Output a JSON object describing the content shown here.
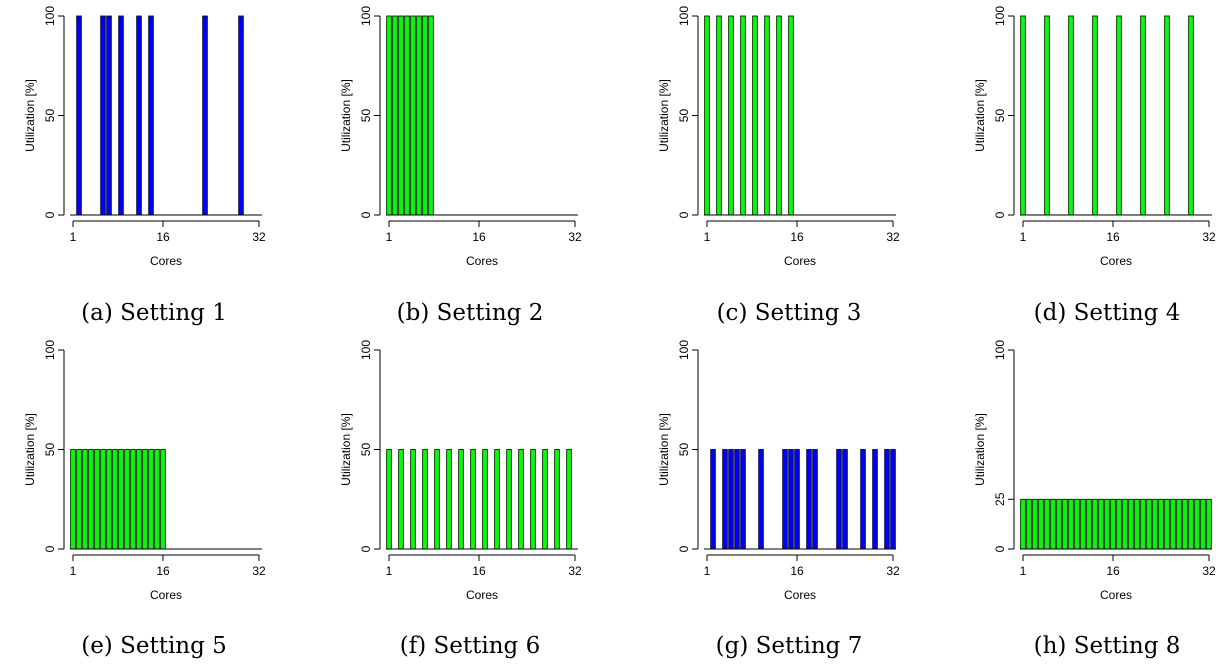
{
  "chart_data": [
    {
      "type": "bar",
      "caption": "(a) Setting 1",
      "xlabel": "Cores",
      "ylabel": "Utilization [%]",
      "ylim": [
        0,
        100
      ],
      "yticks": [
        0,
        50,
        100
      ],
      "xticks": [
        1,
        16,
        32
      ],
      "bar_color": "#0000ff",
      "cores": [
        1,
        2,
        3,
        4,
        5,
        6,
        7,
        8,
        9,
        10,
        11,
        12,
        13,
        14,
        15,
        16,
        17,
        18,
        19,
        20,
        21,
        22,
        23,
        24,
        25,
        26,
        27,
        28,
        29,
        30,
        31,
        32
      ],
      "values": [
        0,
        100,
        0,
        0,
        0,
        100,
        100,
        0,
        100,
        0,
        0,
        100,
        0,
        100,
        0,
        0,
        0,
        0,
        0,
        0,
        0,
        0,
        100,
        0,
        0,
        0,
        0,
        0,
        100,
        0,
        0,
        0
      ]
    },
    {
      "type": "bar",
      "caption": "(b) Setting 2",
      "xlabel": "Cores",
      "ylabel": "Utilization [%]",
      "ylim": [
        0,
        100
      ],
      "yticks": [
        0,
        50,
        100
      ],
      "xticks": [
        1,
        16,
        32
      ],
      "bar_color": "#00ff00",
      "cores": [
        1,
        2,
        3,
        4,
        5,
        6,
        7,
        8,
        9,
        10,
        11,
        12,
        13,
        14,
        15,
        16,
        17,
        18,
        19,
        20,
        21,
        22,
        23,
        24,
        25,
        26,
        27,
        28,
        29,
        30,
        31,
        32
      ],
      "values": [
        100,
        100,
        100,
        100,
        100,
        100,
        100,
        100,
        0,
        0,
        0,
        0,
        0,
        0,
        0,
        0,
        0,
        0,
        0,
        0,
        0,
        0,
        0,
        0,
        0,
        0,
        0,
        0,
        0,
        0,
        0,
        0
      ]
    },
    {
      "type": "bar",
      "caption": "(c) Setting 3",
      "xlabel": "Cores",
      "ylabel": "Utilization [%]",
      "ylim": [
        0,
        100
      ],
      "yticks": [
        0,
        50,
        100
      ],
      "xticks": [
        1,
        16,
        32
      ],
      "bar_color": "#00ff00",
      "cores": [
        1,
        2,
        3,
        4,
        5,
        6,
        7,
        8,
        9,
        10,
        11,
        12,
        13,
        14,
        15,
        16,
        17,
        18,
        19,
        20,
        21,
        22,
        23,
        24,
        25,
        26,
        27,
        28,
        29,
        30,
        31,
        32
      ],
      "values": [
        100,
        0,
        100,
        0,
        100,
        0,
        100,
        0,
        100,
        0,
        100,
        0,
        100,
        0,
        100,
        0,
        0,
        0,
        0,
        0,
        0,
        0,
        0,
        0,
        0,
        0,
        0,
        0,
        0,
        0,
        0,
        0
      ]
    },
    {
      "type": "bar",
      "caption": "(d) Setting 4",
      "xlabel": "Cores",
      "ylabel": "Utilization [%]",
      "ylim": [
        0,
        100
      ],
      "yticks": [
        0,
        50,
        100
      ],
      "xticks": [
        1,
        16,
        32
      ],
      "bar_color": "#00ff00",
      "cores": [
        1,
        2,
        3,
        4,
        5,
        6,
        7,
        8,
        9,
        10,
        11,
        12,
        13,
        14,
        15,
        16,
        17,
        18,
        19,
        20,
        21,
        22,
        23,
        24,
        25,
        26,
        27,
        28,
        29,
        30,
        31,
        32
      ],
      "values": [
        100,
        0,
        0,
        0,
        100,
        0,
        0,
        0,
        100,
        0,
        0,
        0,
        100,
        0,
        0,
        0,
        100,
        0,
        0,
        0,
        100,
        0,
        0,
        0,
        100,
        0,
        0,
        0,
        100,
        0,
        0,
        0
      ]
    },
    {
      "type": "bar",
      "caption": "(e) Setting 5",
      "xlabel": "Cores",
      "ylabel": "Utilization [%]",
      "ylim": [
        0,
        100
      ],
      "yticks": [
        0,
        50,
        100
      ],
      "xticks": [
        1,
        16,
        32
      ],
      "bar_color": "#00ff00",
      "cores": [
        1,
        2,
        3,
        4,
        5,
        6,
        7,
        8,
        9,
        10,
        11,
        12,
        13,
        14,
        15,
        16,
        17,
        18,
        19,
        20,
        21,
        22,
        23,
        24,
        25,
        26,
        27,
        28,
        29,
        30,
        31,
        32
      ],
      "values": [
        50,
        50,
        50,
        50,
        50,
        50,
        50,
        50,
        50,
        50,
        50,
        50,
        50,
        50,
        50,
        50,
        0,
        0,
        0,
        0,
        0,
        0,
        0,
        0,
        0,
        0,
        0,
        0,
        0,
        0,
        0,
        0
      ]
    },
    {
      "type": "bar",
      "caption": "(f) Setting 6",
      "xlabel": "Cores",
      "ylabel": "Utilization [%]",
      "ylim": [
        0,
        100
      ],
      "yticks": [
        0,
        50,
        100
      ],
      "xticks": [
        1,
        16,
        32
      ],
      "bar_color": "#00ff00",
      "cores": [
        1,
        2,
        3,
        4,
        5,
        6,
        7,
        8,
        9,
        10,
        11,
        12,
        13,
        14,
        15,
        16,
        17,
        18,
        19,
        20,
        21,
        22,
        23,
        24,
        25,
        26,
        27,
        28,
        29,
        30,
        31,
        32
      ],
      "values": [
        50,
        0,
        50,
        0,
        50,
        0,
        50,
        0,
        50,
        0,
        50,
        0,
        50,
        0,
        50,
        0,
        50,
        0,
        50,
        0,
        50,
        0,
        50,
        0,
        50,
        0,
        50,
        0,
        50,
        0,
        50,
        0
      ]
    },
    {
      "type": "bar",
      "caption": "(g) Setting 7",
      "xlabel": "Cores",
      "ylabel": "Utilization [%]",
      "ylim": [
        0,
        100
      ],
      "yticks": [
        0,
        50,
        100
      ],
      "xticks": [
        1,
        16,
        32
      ],
      "bar_color": "#0000ff",
      "cores": [
        1,
        2,
        3,
        4,
        5,
        6,
        7,
        8,
        9,
        10,
        11,
        12,
        13,
        14,
        15,
        16,
        17,
        18,
        19,
        20,
        21,
        22,
        23,
        24,
        25,
        26,
        27,
        28,
        29,
        30,
        31,
        32
      ],
      "values": [
        0,
        50,
        0,
        50,
        50,
        50,
        50,
        0,
        0,
        50,
        0,
        0,
        0,
        50,
        50,
        50,
        0,
        50,
        50,
        0,
        0,
        0,
        50,
        50,
        0,
        0,
        50,
        0,
        50,
        0,
        50,
        50
      ]
    },
    {
      "type": "bar",
      "caption": "(h) Setting 8",
      "xlabel": "Cores",
      "ylabel": "Utilization [%]",
      "ylim": [
        0,
        100
      ],
      "yticks": [
        0,
        25,
        100
      ],
      "xticks": [
        1,
        16,
        32
      ],
      "bar_color": "#00ff00",
      "cores": [
        1,
        2,
        3,
        4,
        5,
        6,
        7,
        8,
        9,
        10,
        11,
        12,
        13,
        14,
        15,
        16,
        17,
        18,
        19,
        20,
        21,
        22,
        23,
        24,
        25,
        26,
        27,
        28,
        29,
        30,
        31,
        32
      ],
      "values": [
        25,
        25,
        25,
        25,
        25,
        25,
        25,
        25,
        25,
        25,
        25,
        25,
        25,
        25,
        25,
        25,
        25,
        25,
        25,
        25,
        25,
        25,
        25,
        25,
        25,
        25,
        25,
        25,
        25,
        25,
        25,
        25
      ]
    }
  ]
}
